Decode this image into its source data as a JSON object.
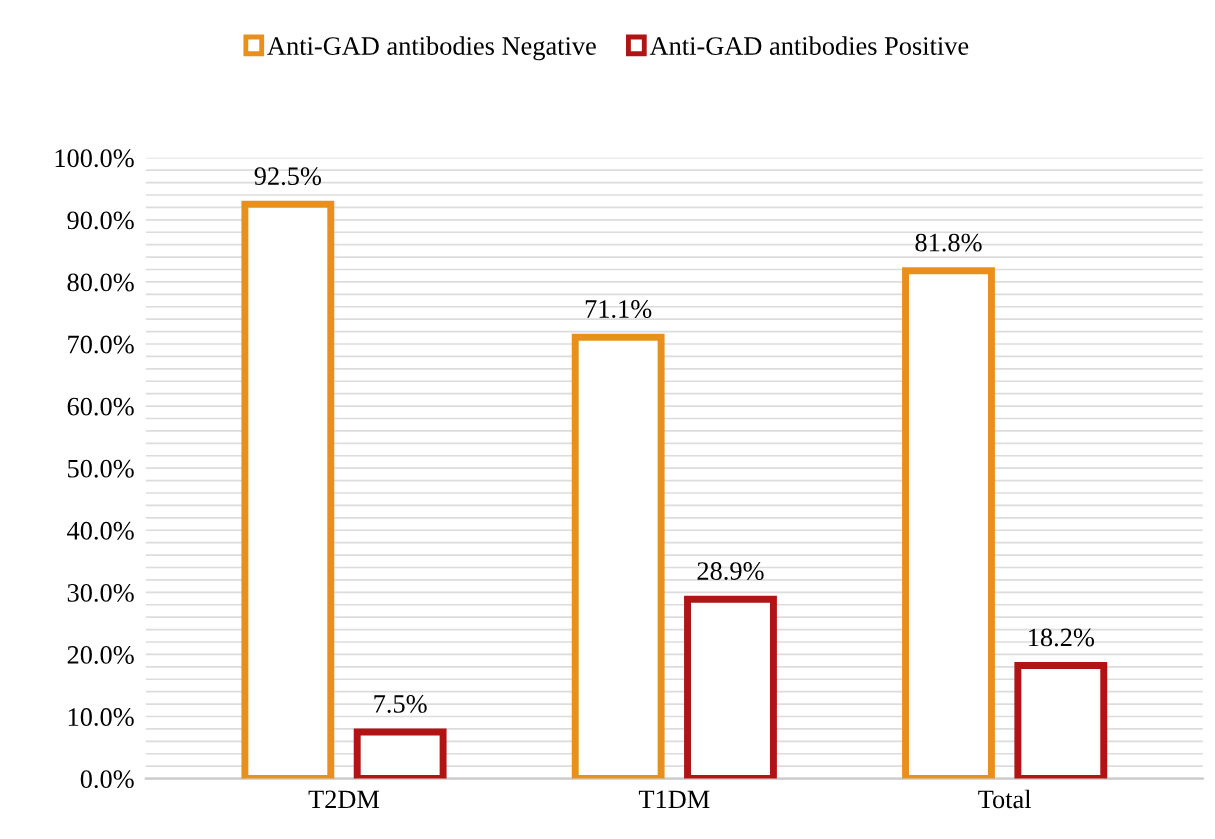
{
  "chart_data": {
    "type": "bar",
    "categories": [
      "T2DM",
      "T1DM",
      "Total"
    ],
    "series": [
      {
        "name": "Anti-GAD antibodies Negative",
        "color": "#e8901c",
        "values": [
          92.5,
          71.1,
          81.8
        ],
        "value_labels": [
          "92.5%",
          "71.1%",
          "81.8%"
        ]
      },
      {
        "name": "Anti-GAD antibodies Positive",
        "color": "#b01414",
        "values": [
          7.5,
          28.9,
          18.2
        ],
        "value_labels": [
          "7.5%",
          "28.9%",
          "18.2%"
        ]
      }
    ],
    "ylim": [
      0,
      100
    ],
    "yticks": [
      {
        "value": 0,
        "label": "0.0%"
      },
      {
        "value": 2,
        "label": null
      },
      {
        "value": 4,
        "label": null
      },
      {
        "value": 6,
        "label": null
      },
      {
        "value": 8,
        "label": null
      },
      {
        "value": 10,
        "label": "10.0%"
      },
      {
        "value": 12,
        "label": null
      },
      {
        "value": 14,
        "label": null
      },
      {
        "value": 16,
        "label": null
      },
      {
        "value": 18,
        "label": null
      },
      {
        "value": 20,
        "label": "20.0%"
      },
      {
        "value": 22,
        "label": null
      },
      {
        "value": 24,
        "label": null
      },
      {
        "value": 26,
        "label": null
      },
      {
        "value": 28,
        "label": null
      },
      {
        "value": 30,
        "label": "30.0%"
      },
      {
        "value": 32,
        "label": null
      },
      {
        "value": 34,
        "label": null
      },
      {
        "value": 36,
        "label": null
      },
      {
        "value": 38,
        "label": null
      },
      {
        "value": 40,
        "label": "40.0%"
      },
      {
        "value": 42,
        "label": null
      },
      {
        "value": 44,
        "label": null
      },
      {
        "value": 46,
        "label": null
      },
      {
        "value": 48,
        "label": null
      },
      {
        "value": 50,
        "label": "50.0%"
      },
      {
        "value": 52,
        "label": null
      },
      {
        "value": 54,
        "label": null
      },
      {
        "value": 56,
        "label": null
      },
      {
        "value": 58,
        "label": null
      },
      {
        "value": 60,
        "label": "60.0%"
      },
      {
        "value": 62,
        "label": null
      },
      {
        "value": 64,
        "label": null
      },
      {
        "value": 66,
        "label": null
      },
      {
        "value": 68,
        "label": null
      },
      {
        "value": 70,
        "label": "70.0%"
      },
      {
        "value": 72,
        "label": null
      },
      {
        "value": 74,
        "label": null
      },
      {
        "value": 76,
        "label": null
      },
      {
        "value": 78,
        "label": null
      },
      {
        "value": 80,
        "label": "80.0%"
      },
      {
        "value": 82,
        "label": null
      },
      {
        "value": 84,
        "label": null
      },
      {
        "value": 86,
        "label": null
      },
      {
        "value": 88,
        "label": null
      },
      {
        "value": 90,
        "label": "90.0%"
      },
      {
        "value": 92,
        "label": null
      },
      {
        "value": 94,
        "label": null
      },
      {
        "value": 96,
        "label": null
      },
      {
        "value": 98,
        "label": null
      },
      {
        "value": 100,
        "label": "100.0%"
      }
    ],
    "grid": "y",
    "legend": "top"
  }
}
